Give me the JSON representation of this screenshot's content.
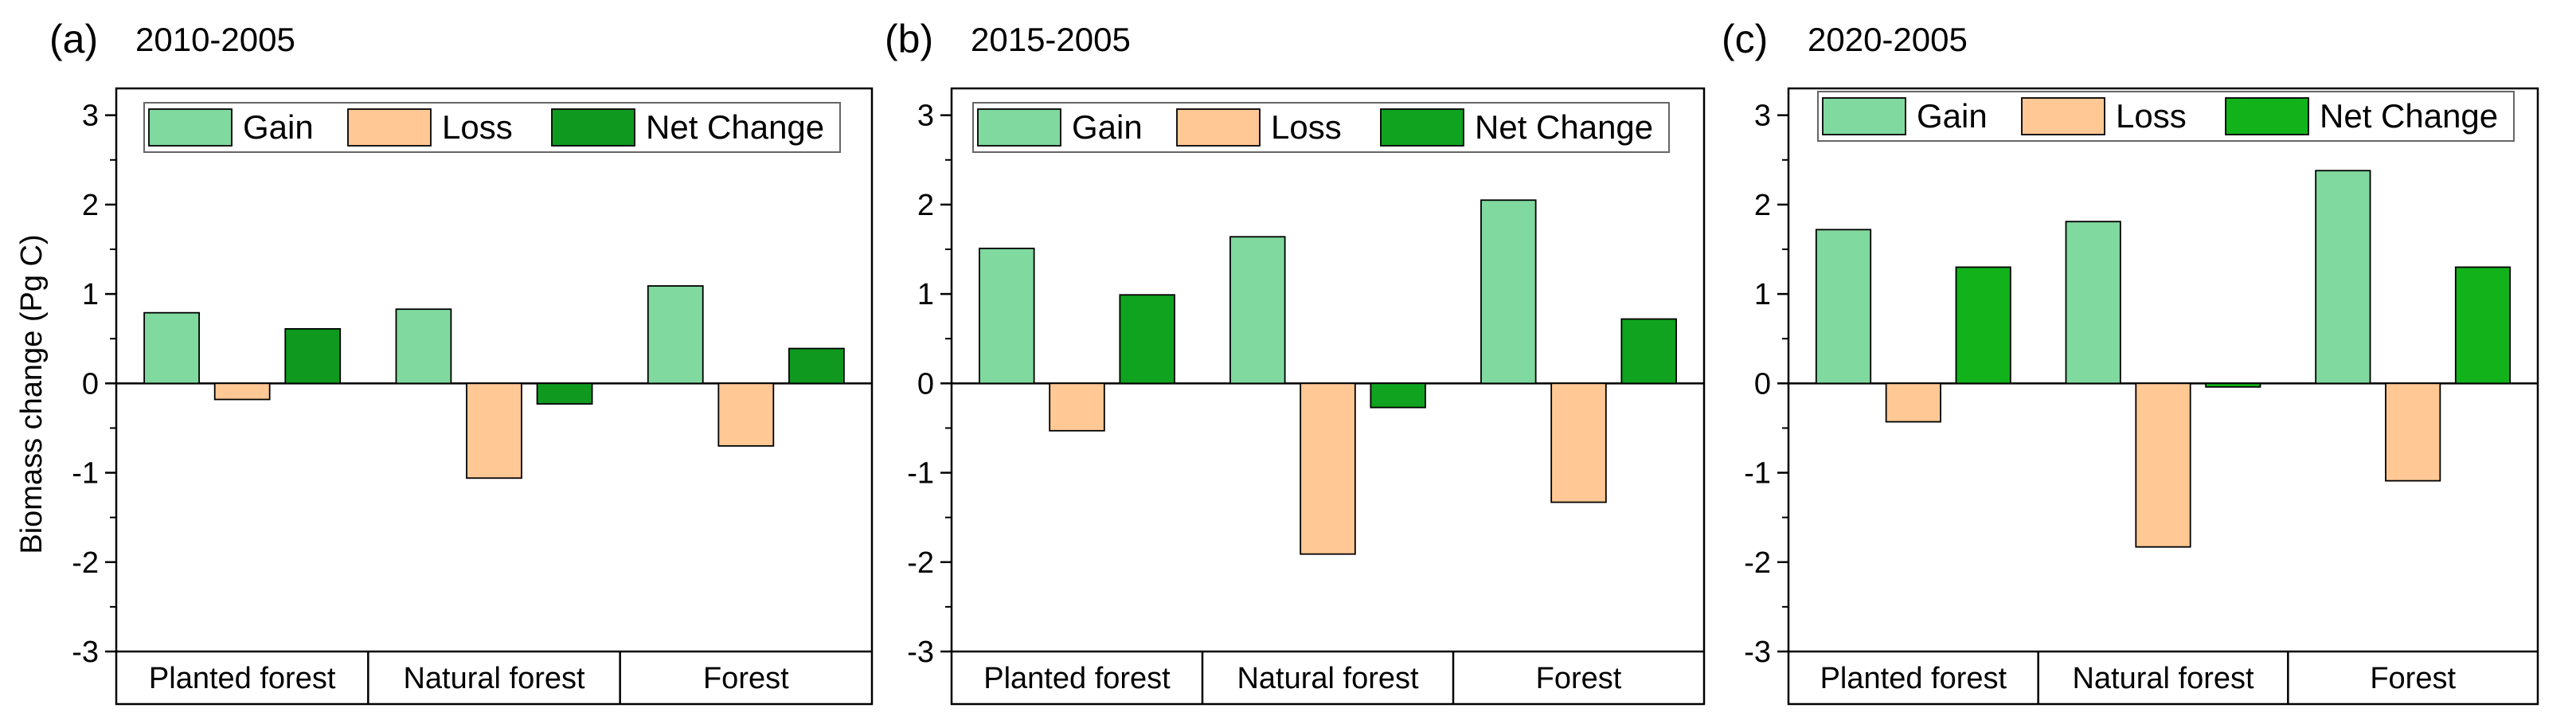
{
  "figure": {
    "ylabel": "Biomass change (Pg C)"
  },
  "legend": {
    "items": [
      {
        "label": "Gain"
      },
      {
        "label": "Loss"
      },
      {
        "label": "Net Change"
      }
    ]
  },
  "colors": {
    "gain": "#80d99f",
    "loss": "#ffc894",
    "net_change_a": "#0f9a1f",
    "net_change_b": "#0fa31f",
    "net_change_c": "#12b21b",
    "bar_edge": "#000000",
    "axis": "#000000"
  },
  "chart_data": [
    {
      "type": "bar",
      "panel_label": "(a)",
      "title": "2010-2005",
      "categories": [
        "Planted forest",
        "Natural forest",
        "Forest"
      ],
      "series": [
        {
          "name": "Gain",
          "values": [
            0.79,
            0.83,
            1.09
          ]
        },
        {
          "name": "Loss",
          "values": [
            -0.18,
            -1.06,
            -0.7
          ]
        },
        {
          "name": "Net Change",
          "values": [
            0.61,
            -0.23,
            0.39
          ]
        }
      ],
      "xlabel": "",
      "ylabel": "Biomass change (Pg C)",
      "ylim": [
        -3,
        3.3
      ],
      "yticks": [
        -3,
        -2,
        -1,
        0,
        1,
        2,
        3
      ],
      "ytick_labels": [
        "-3",
        "-2",
        "-1",
        "0",
        "1",
        "2",
        "3"
      ],
      "legend_position": "top"
    },
    {
      "type": "bar",
      "panel_label": "(b)",
      "title": "2015-2005",
      "categories": [
        "Planted forest",
        "Natural forest",
        "Forest"
      ],
      "series": [
        {
          "name": "Gain",
          "values": [
            1.51,
            1.64,
            2.05
          ]
        },
        {
          "name": "Loss",
          "values": [
            -0.53,
            -1.91,
            -1.33
          ]
        },
        {
          "name": "Net Change",
          "values": [
            0.99,
            -0.27,
            0.72
          ]
        }
      ],
      "xlabel": "",
      "ylabel": "",
      "ylim": [
        -3,
        3.3
      ],
      "yticks": [
        -3,
        -2,
        -1,
        0,
        1,
        2,
        3
      ],
      "ytick_labels": [
        "-3",
        "-2",
        "-1",
        "0",
        "1",
        "2",
        "3"
      ],
      "legend_position": "top"
    },
    {
      "type": "bar",
      "panel_label": "(c)",
      "title": "2020-2005",
      "categories": [
        "Planted forest",
        "Natural forest",
        "Forest"
      ],
      "series": [
        {
          "name": "Gain",
          "values": [
            1.72,
            1.81,
            2.38
          ]
        },
        {
          "name": "Loss",
          "values": [
            -0.43,
            -1.83,
            -1.09
          ]
        },
        {
          "name": "Net Change",
          "values": [
            1.3,
            -0.04,
            1.3
          ]
        }
      ],
      "xlabel": "",
      "ylabel": "",
      "ylim": [
        -3,
        3.3
      ],
      "yticks": [
        -3,
        -2,
        -1,
        0,
        1,
        2,
        3
      ],
      "ytick_labels": [
        "-3",
        "-2",
        "-1",
        "0",
        "1",
        "2",
        "3"
      ],
      "legend_position": "top"
    }
  ]
}
